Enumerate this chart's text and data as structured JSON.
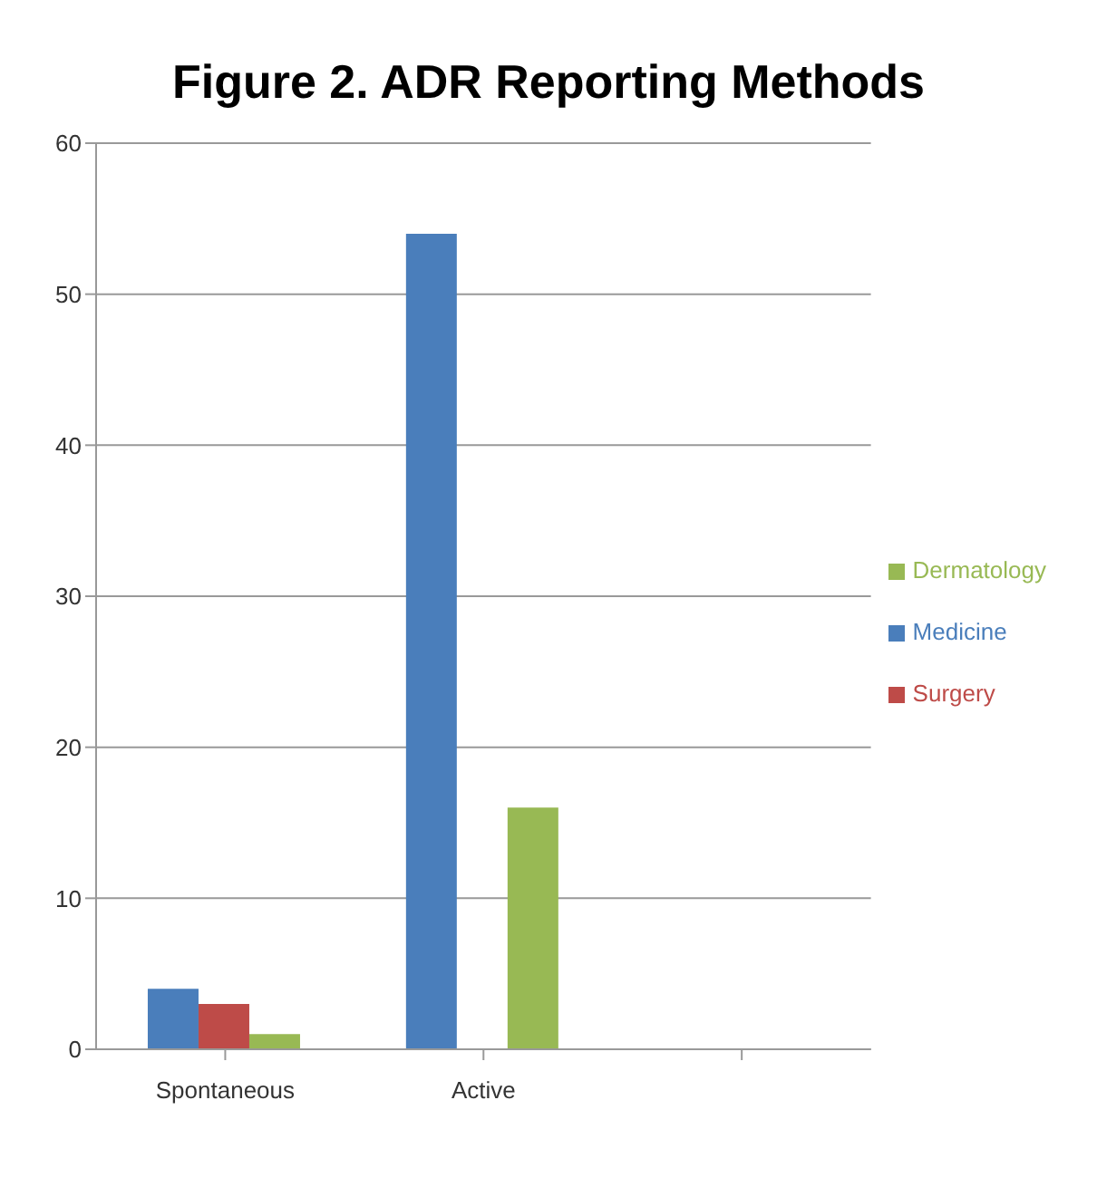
{
  "chart_data": {
    "type": "bar",
    "title": "Figure 2. ADR Reporting Methods",
    "categories": [
      "Spontaneous",
      "Active",
      null
    ],
    "series": [
      {
        "name": "Medicine",
        "color": "#4a7ebb",
        "values": [
          4,
          54,
          null
        ]
      },
      {
        "name": "Surgery",
        "color": "#be4b48",
        "values": [
          3,
          0,
          null
        ]
      },
      {
        "name": "Dermatology",
        "color": "#98b954",
        "values": [
          1,
          16,
          null
        ]
      }
    ],
    "ylim": [
      0,
      60
    ],
    "yticks": [
      0,
      10,
      20,
      30,
      40,
      50,
      60
    ],
    "grid": "y",
    "legend": "right"
  }
}
